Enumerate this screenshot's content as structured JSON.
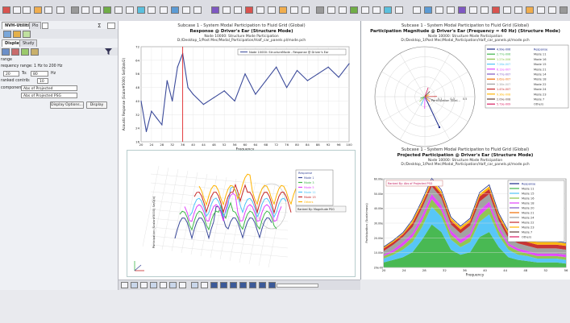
{
  "panel": {
    "top_tabs": [
      "NVH-Utilities",
      "Plo"
    ],
    "sub_tabs": [
      "Display",
      "Study"
    ],
    "freq_range_label": "requency range: 1 Hz to 200 Hz",
    "range_label": "range",
    "freq_from": "20",
    "to_label": "To:",
    "freq_to": "80",
    "hz_label": "Hz",
    "ranked_label": "ranked contrib:",
    "ranked_value": "10",
    "component_label": "component:",
    "component_value": "Abs of Projected",
    "second_value": "Abs of Projected PSG",
    "display_options_button": "Display Options...",
    "display_button": "Display"
  },
  "plot_response": {
    "title1": "Subcase 1 - System Modal Participation to Fluid Grid (Global)",
    "title2": "Response @ Driver's Ear (Structure Mode)",
    "title3a": "Node 10000: Structure Mode Participation",
    "title3b": "D:/Desktop_1/Post Mec/Modal_Participation/Half_car_panels.pl/mode.pch",
    "legend": "Node 10000: StructureMode - Response @ Driver's Ear",
    "ylabel": "Acoustic Response (Scalar#5000) Se/Qb/e/2)",
    "xlabel": "Frequency",
    "xticks": [
      "20",
      "24",
      "28",
      "32",
      "36",
      "40",
      "44",
      "48",
      "52",
      "56",
      "60",
      "64",
      "68",
      "72",
      "76",
      "80",
      "84",
      "88",
      "92",
      "96",
      "100"
    ],
    "yticks": [
      "72",
      "64",
      "56",
      "48",
      "40",
      "32",
      "24",
      "16"
    ],
    "cursor_x": 36,
    "chart_data": {
      "type": "line",
      "x": [
        20,
        22,
        24,
        26,
        28,
        30,
        32,
        34,
        36,
        38,
        40,
        44,
        48,
        52,
        56,
        60,
        64,
        68,
        72,
        76,
        80,
        84,
        88,
        92,
        96,
        100
      ],
      "values": [
        40,
        22,
        34,
        30,
        26,
        52,
        40,
        60,
        68,
        48,
        44,
        38,
        42,
        46,
        40,
        56,
        44,
        52,
        60,
        48,
        58,
        52,
        56,
        60,
        54,
        62
      ]
    }
  },
  "plot_polar": {
    "title1": "Subcase 1 - System Modal Participation to Fluid Grid (Global)",
    "title2": "Participation Magnitude @ Driver's Ear (Frequency = 40 Hz) (Structure Mode)",
    "title3a": "Node 10000: Structure Mode Participation",
    "title3b": "D:/Desktop_1/Post Mec/Modal_Participation/Half_car_panels.pl/mode.pch",
    "axis_label": "Participation (Scal...",
    "ring_labels": [
      "0.1",
      "0.3",
      "0.5"
    ],
    "legend": [
      {
        "value": "4.99e-006",
        "name": "Response",
        "color": "#1b2a8a"
      },
      {
        "value": "2.77e-006",
        "name": "Mode 11",
        "color": "#3fb54a"
      },
      {
        "value": "1.27e-006",
        "name": "Mode 16",
        "color": "#8bc34a"
      },
      {
        "value": "7.26e-007",
        "name": "Mode 15",
        "color": "#4fc3f7"
      },
      {
        "value": "6.12e-007",
        "name": "Mode 21",
        "color": "#e040fb"
      },
      {
        "value": "4.77e-007",
        "name": "Mode 14",
        "color": "#7e57c2"
      },
      {
        "value": "3.62e-007",
        "name": "Mode 18",
        "color": "#ef6c00"
      },
      {
        "value": "2.38e-007",
        "name": "Mode 22",
        "color": "#9e9e9e"
      },
      {
        "value": "1.47e-007",
        "name": "Mode 24",
        "color": "#c62828"
      },
      {
        "value": "9.36e-008",
        "name": "Mode 23",
        "color": "#ffb300"
      },
      {
        "value": "2.09e-008",
        "name": "Mode 7",
        "color": "#5d4037"
      },
      {
        "value": "5.73e-009",
        "name": "Others",
        "color": "#d81b60"
      }
    ]
  },
  "plot_3d": {
    "legend_header": "Response",
    "legend": [
      "Mode 1",
      "Mode 3",
      "Mode 5",
      "Mode 11",
      "Mode 15",
      "Others"
    ],
    "ranked_by": "Ranked By: Magnitude PSG",
    "zlabel": "Participation (Scalar#5000) Se/Q(b)"
  },
  "plot_area": {
    "title1": "Subcase 1 - System Modal Participation to Fluid Grid (Global)",
    "title2": "Projected Participation @ Driver's Ear (Structure Mode)",
    "title3a": "Node 10000: Structure Mode Participation",
    "title3b": "D:/Desktop_1/Post Mec/Modal_Participation/Half_car_panels.pl/mode.pch",
    "ranked_note": "Ranked By: Abs of Projected PSG",
    "ylabel": "Participation (Scale/mass)",
    "xlabel": "Frequency",
    "xticks": [
      "20",
      "24",
      "28",
      "32",
      "36",
      "40",
      "44",
      "48",
      "52",
      "56"
    ],
    "yticks": [
      "60.00e",
      "50.00e",
      "40.00e",
      "30.00e",
      "20.00e",
      "10.00e",
      "20e-00"
    ],
    "legend": [
      {
        "name": "Response",
        "color": "#1b2a8a"
      },
      {
        "name": "Mode 11",
        "color": "#3fb54a"
      },
      {
        "name": "Mode 15",
        "color": "#4fc3f7"
      },
      {
        "name": "Mode 16",
        "color": "#8bc34a"
      },
      {
        "name": "Mode 18",
        "color": "#e040fb"
      },
      {
        "name": "Mode 20",
        "color": "#7e57c2"
      },
      {
        "name": "Mode 21",
        "color": "#ef6c00"
      },
      {
        "name": "Mode 24",
        "color": "#9e9e9e"
      },
      {
        "name": "Mode 22",
        "color": "#c62828"
      },
      {
        "name": "Mode 23",
        "color": "#ffb300"
      },
      {
        "name": "Mode 7",
        "color": "#5d4037"
      },
      {
        "name": "Others",
        "color": "#d81b60"
      }
    ],
    "chart_data": {
      "type": "area",
      "x": [
        20,
        22,
        24,
        26,
        28,
        30,
        32,
        34,
        36,
        38,
        40,
        42,
        44,
        46,
        48,
        50,
        52,
        54,
        56,
        58
      ],
      "series": [
        {
          "name": "Mode 11",
          "color": "#3fb54a",
          "values": [
            4,
            6,
            8,
            12,
            22,
            34,
            28,
            14,
            10,
            12,
            24,
            28,
            16,
            8,
            6,
            5,
            4,
            4,
            4,
            3
          ]
        },
        {
          "name": "Mode 15",
          "color": "#4fc3f7",
          "values": [
            3,
            4,
            6,
            8,
            10,
            14,
            12,
            8,
            6,
            8,
            12,
            14,
            9,
            6,
            4,
            4,
            3,
            3,
            3,
            3
          ]
        },
        {
          "name": "Mode 16",
          "color": "#8bc34a",
          "values": [
            2,
            2,
            3,
            4,
            5,
            6,
            5,
            4,
            3,
            4,
            5,
            6,
            4,
            3,
            3,
            2,
            2,
            2,
            2,
            2
          ]
        },
        {
          "name": "Mode 18",
          "color": "#e040fb",
          "values": [
            1,
            2,
            3,
            3,
            4,
            4,
            4,
            3,
            3,
            3,
            4,
            4,
            3,
            2,
            2,
            2,
            2,
            2,
            2,
            2
          ]
        },
        {
          "name": "Mode 22",
          "color": "#9e9e9e",
          "values": [
            3,
            4,
            4,
            5,
            6,
            6,
            6,
            5,
            5,
            6,
            7,
            6,
            5,
            4,
            4,
            4,
            4,
            4,
            4,
            4
          ]
        },
        {
          "name": "Mode 24",
          "color": "#c62828",
          "values": [
            2,
            2,
            2,
            3,
            3,
            3,
            3,
            3,
            3,
            3,
            4,
            4,
            3,
            3,
            3,
            3,
            3,
            3,
            3,
            3
          ]
        },
        {
          "name": "Mode 23",
          "color": "#ffb300",
          "values": [
            1,
            1,
            1,
            2,
            2,
            2,
            2,
            2,
            2,
            2,
            2,
            2,
            2,
            2,
            2,
            2,
            2,
            2,
            2,
            2
          ]
        }
      ]
    }
  }
}
